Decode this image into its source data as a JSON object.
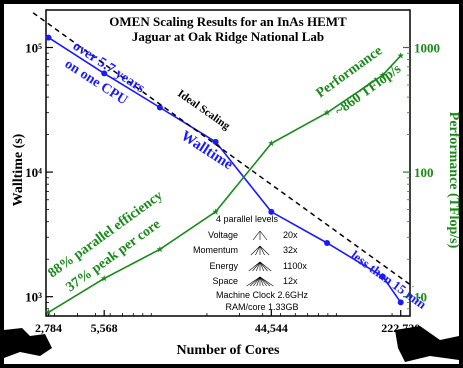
{
  "chart_data": {
    "type": "line",
    "title": "OMEN Scaling Results for an InAs HEMT",
    "subtitle": "Jaguar at Oak Ridge National Lab",
    "xlabel": "Number of Cores",
    "ylabel_left": "Walltime (s)",
    "ylabel_right": "Performance (TFlop/s)",
    "x_scale": "log",
    "y_scale": "log",
    "xlim": [
      2700,
      250000
    ],
    "ylim_left": [
      700,
      200000
    ],
    "ylim_right": [
      7,
      2000
    ],
    "x_ticks": [
      2784,
      5568,
      44544,
      222720
    ],
    "x_tick_labels": [
      "2,784",
      "5,568",
      "44,544",
      "222,720"
    ],
    "y_left_ticks": [
      1000,
      10000,
      100000
    ],
    "y_left_tick_labels": [
      "10³",
      "10⁴",
      "10⁵"
    ],
    "y_right_ticks": [
      10,
      100,
      1000
    ],
    "y_right_tick_labels": [
      "10",
      "100",
      "1000"
    ],
    "grid": false,
    "series": [
      {
        "name": "Walltime",
        "axis": "left",
        "color": "#1a1aff",
        "marker": "circle",
        "x": [
          2784,
          5568,
          11136,
          22272,
          44544,
          89088,
          178176,
          222720
        ],
        "y": [
          120000,
          62000,
          33000,
          17500,
          4800,
          2700,
          1450,
          900
        ]
      },
      {
        "name": "Performance",
        "axis": "right",
        "color": "#1a8a1a",
        "marker": "star",
        "x": [
          2784,
          5568,
          11136,
          22272,
          44544,
          89088,
          178176,
          222720
        ],
        "y": [
          7.5,
          14,
          24,
          48,
          170,
          300,
          600,
          860
        ]
      },
      {
        "name": "Ideal Scaling",
        "axis": "left",
        "color": "#000000",
        "style": "dashed",
        "x": [
          2300,
          260000
        ],
        "y": [
          190000,
          1200
        ]
      }
    ],
    "annotations": {
      "over_years": "over 5.7 years",
      "one_cpu": "on one CPU",
      "ideal": "Ideal Scaling",
      "walltime": "Walltime",
      "performance": "Performance",
      "tflops": "~860 TFlop/s",
      "efficiency": "88% parallel efficiency",
      "peak": "37% peak per core",
      "less_than": "less than 15 min"
    },
    "inset": {
      "title": "4 parallel levels",
      "levels": [
        {
          "label": "Voltage",
          "value": "20x"
        },
        {
          "label": "Momentum",
          "value": "32x"
        },
        {
          "label": "Energy",
          "value": "1100x"
        },
        {
          "label": "Space",
          "value": "12x"
        }
      ],
      "clock": "Machine Clock  2.6GHz",
      "ram": "RAM/core  1.33GB"
    }
  }
}
